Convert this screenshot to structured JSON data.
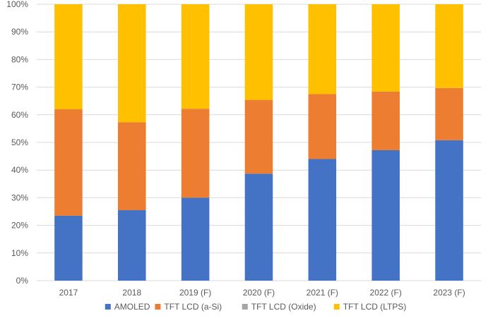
{
  "chart_data": {
    "type": "bar",
    "stacked": true,
    "percent_stacked": true,
    "categories": [
      "2017",
      "2018",
      "2019 (F)",
      "2020 (F)",
      "2021 (F)",
      "2022 (F)",
      "2023 (F)"
    ],
    "series": [
      {
        "name": "AMOLED",
        "color": "#4472C4",
        "values": [
          23.5,
          25.5,
          30,
          38.7,
          44,
          47.2,
          50.8
        ]
      },
      {
        "name": "TFT LCD (a-Si)",
        "color": "#ED7D31",
        "values": [
          38.5,
          31.8,
          32.2,
          26.7,
          23.5,
          21.2,
          18.9
        ]
      },
      {
        "name": "TFT LCD (Oxide)",
        "color": "#A5A5A5",
        "values": [
          0,
          0,
          0,
          0,
          0,
          0,
          0
        ]
      },
      {
        "name": "TFT LCD (LTPS)",
        "color": "#FFC000",
        "values": [
          38,
          42.7,
          37.8,
          34.6,
          32.5,
          31.6,
          30.3
        ]
      }
    ],
    "yticks": [
      "0%",
      "10%",
      "20%",
      "30%",
      "40%",
      "50%",
      "60%",
      "70%",
      "80%",
      "90%",
      "100%"
    ],
    "ylim": [
      0,
      100
    ],
    "grid": true,
    "legend_position": "bottom",
    "title": "",
    "xlabel": "",
    "ylabel": ""
  }
}
